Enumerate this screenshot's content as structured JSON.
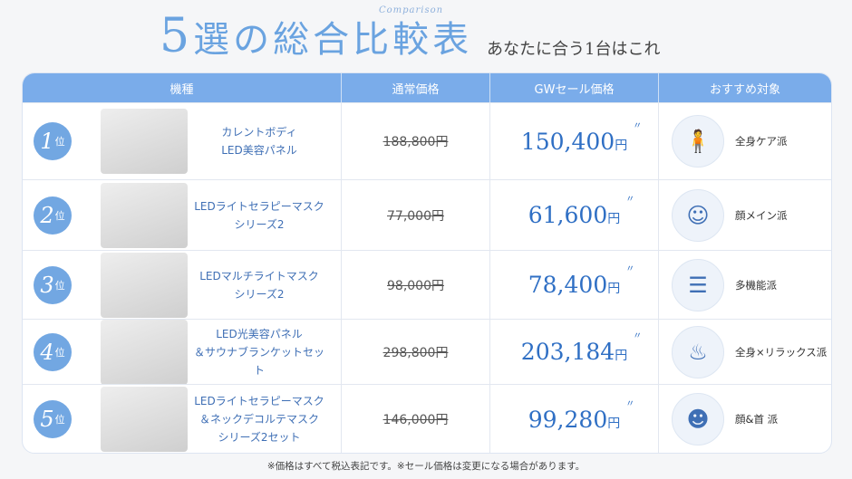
{
  "header": {
    "title_num": "5",
    "title_rest": "選の総合比較表",
    "script": "Comparison",
    "subtitle": "あなたに合う1台はこれ"
  },
  "columns": [
    "機種",
    "通常価格",
    "GWセール価格",
    "おすすめ対象"
  ],
  "rank_suffix": "位",
  "yen": "円",
  "rows": [
    {
      "rank": "1",
      "name1": "カレントボディ",
      "name2": "LED美容パネル",
      "name3": "",
      "regular": "188,800円",
      "sale": "150,400",
      "target": "全身ケア派",
      "icon": "body-icon"
    },
    {
      "rank": "2",
      "name1": "LEDライトセラピーマスク",
      "name2": "シリーズ2",
      "name3": "",
      "regular": "77,000円",
      "sale": "61,600",
      "target": "顔メイン派",
      "icon": "face-icon"
    },
    {
      "rank": "3",
      "name1": "LEDマルチライトマスク",
      "name2": "シリーズ2",
      "name3": "",
      "regular": "98,000円",
      "sale": "78,400",
      "target": "多機能派",
      "icon": "sliders-icon"
    },
    {
      "rank": "4",
      "name1": "LED光美容パネル",
      "name2": "＆サウナブランケットセット",
      "name3": "",
      "regular": "298,800円",
      "sale": "203,184",
      "target": "全身×リラックス派",
      "icon": "relax-icon"
    },
    {
      "rank": "5",
      "name1": "LEDライトセラピーマスク",
      "name2": "＆ネックデコルテマスク",
      "name3": "シリーズ2セット",
      "regular": "146,000円",
      "sale": "99,280",
      "target": "顔&首 派",
      "icon": "face-neck-icon"
    }
  ],
  "footer": "※価格はすべて税込表記です。※セール価格は変更になる場合があります。",
  "colors": {
    "accent": "#7aacea",
    "sale": "#2f6fc4"
  }
}
